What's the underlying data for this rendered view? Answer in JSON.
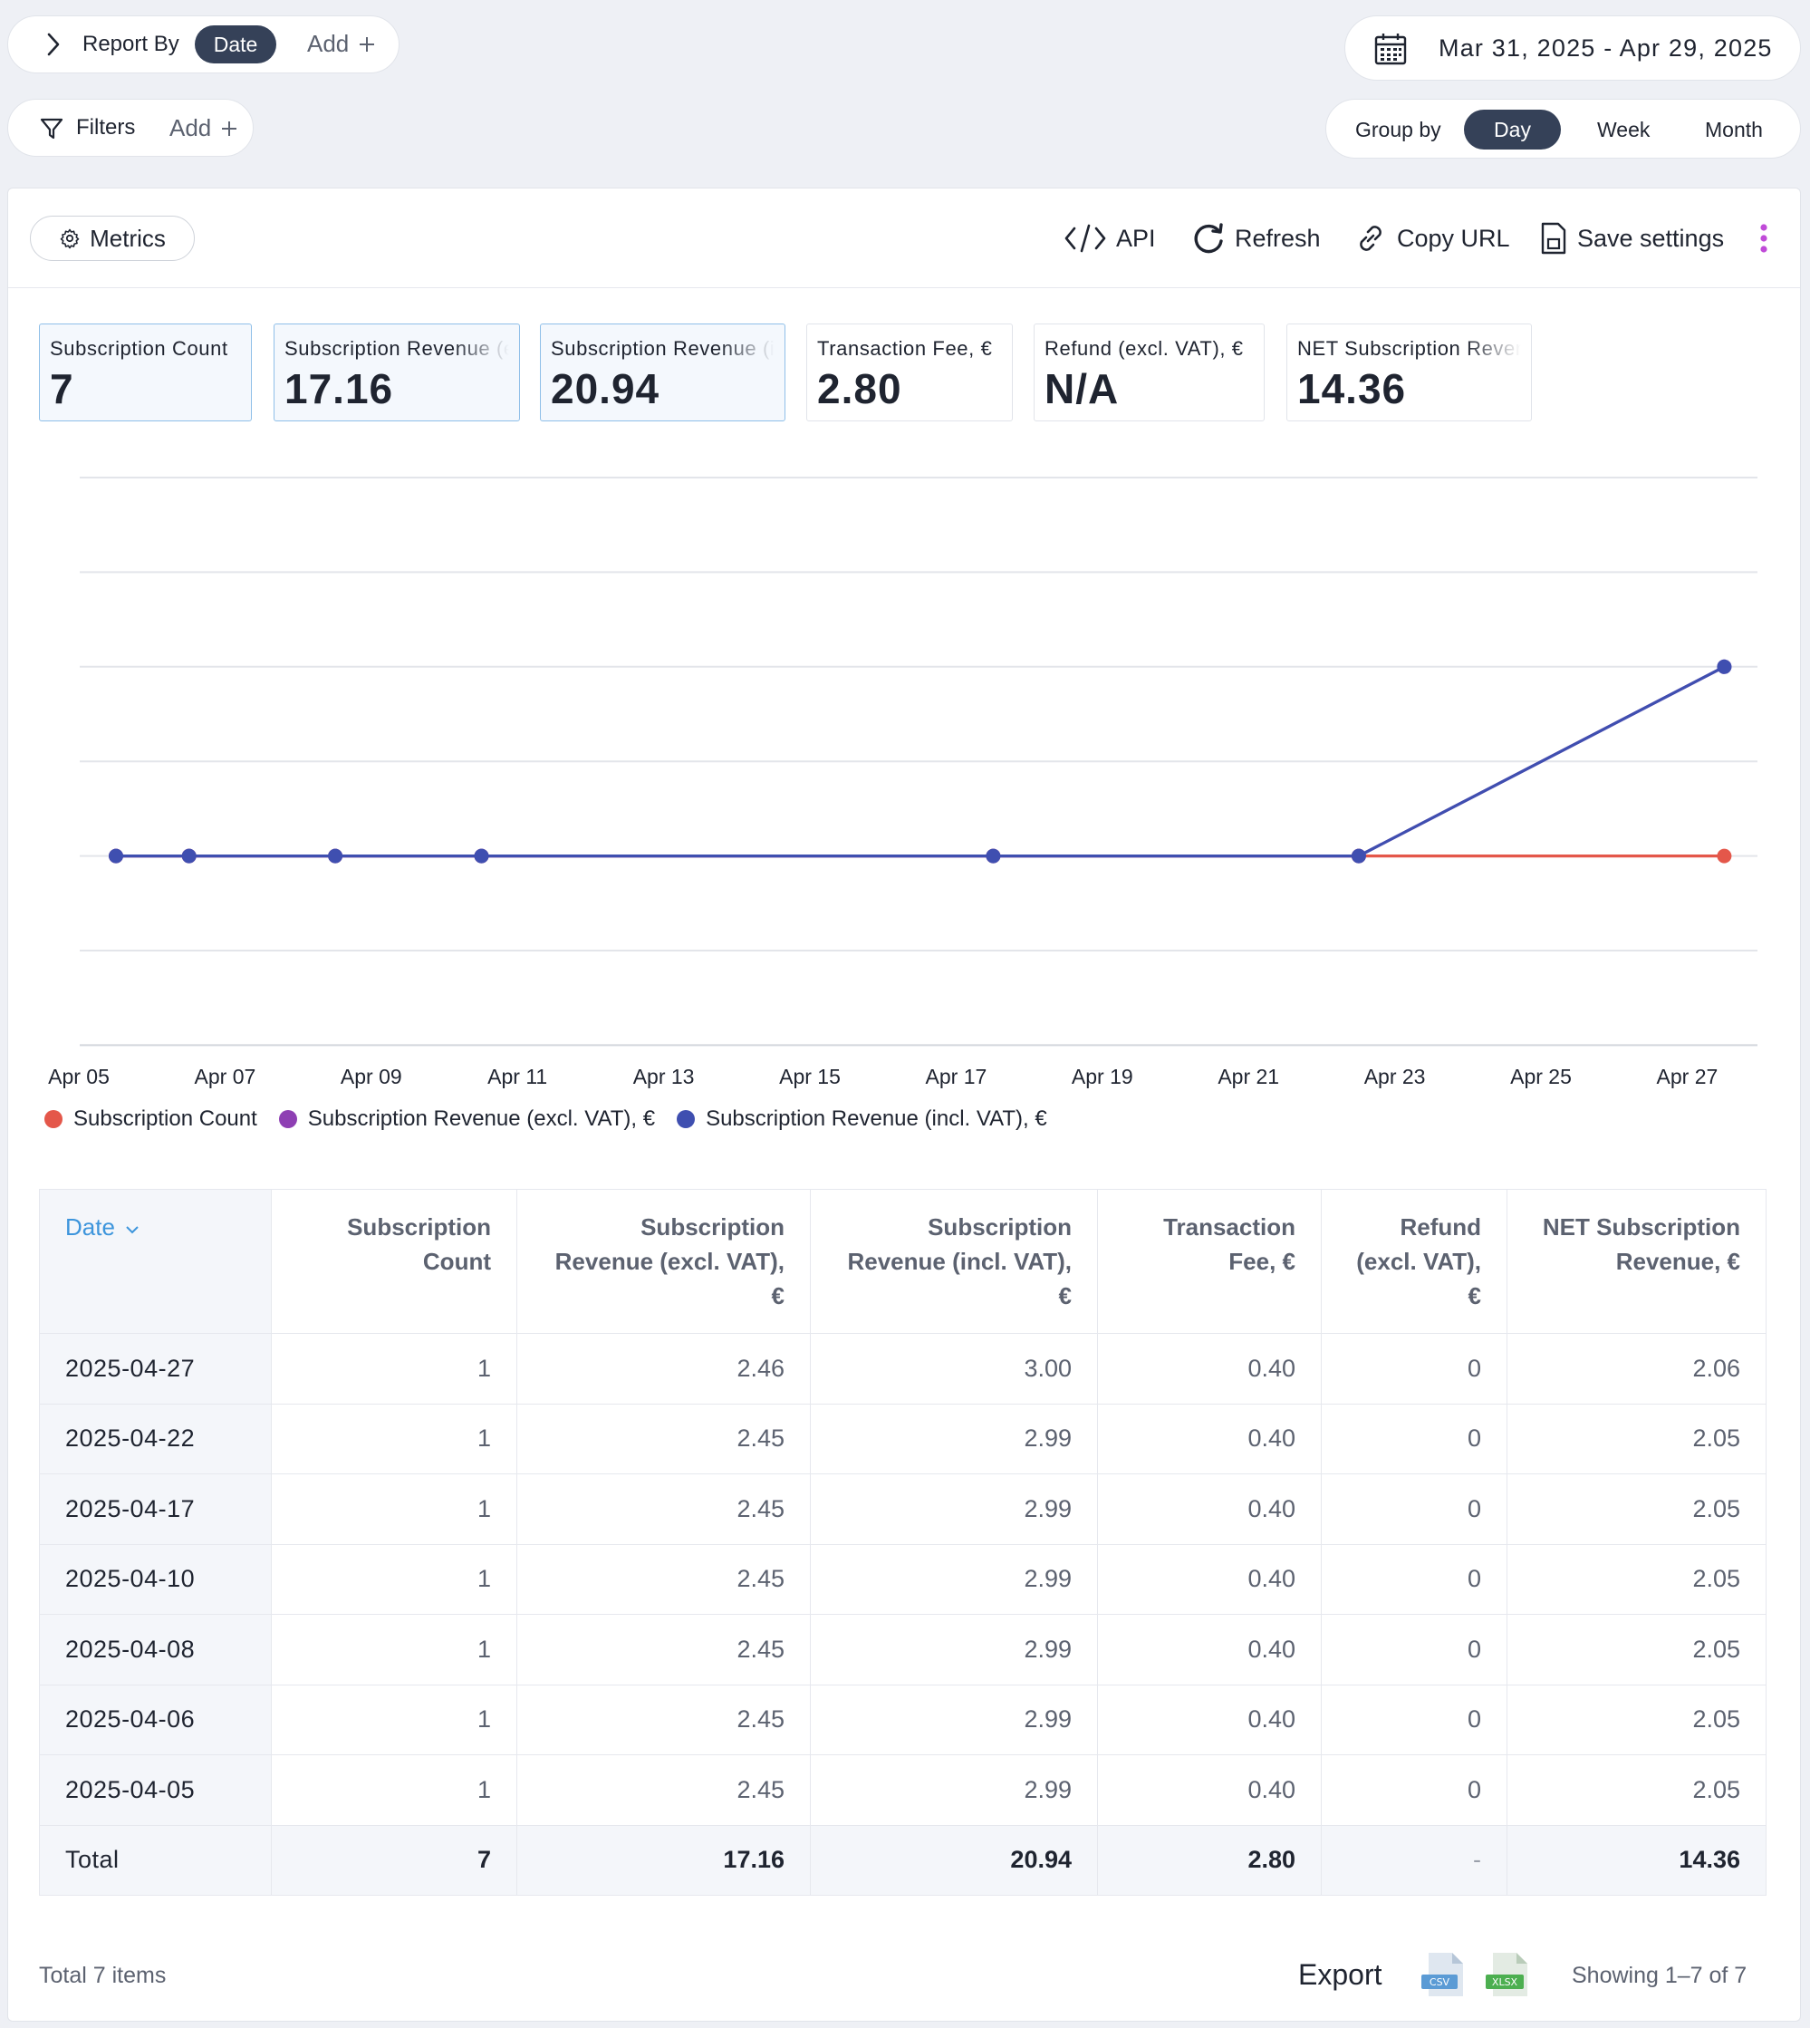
{
  "report_by": {
    "label": "Report By",
    "chip": "Date",
    "add": "Add"
  },
  "filters": {
    "label": "Filters",
    "add": "Add"
  },
  "date_range": "Mar 31, 2025 - Apr 29, 2025",
  "group_by": {
    "label": "Group by",
    "options": [
      "Day",
      "Week",
      "Month"
    ],
    "selected": "Day"
  },
  "toolbar": {
    "metrics": "Metrics",
    "api": "API",
    "refresh": "Refresh",
    "copy_url": "Copy URL",
    "save_settings": "Save settings"
  },
  "cards": [
    {
      "label": "Subscription Count",
      "value": "7",
      "selected": true
    },
    {
      "label": "Subscription Revenue (excl. VAT), €",
      "value": "17.16",
      "selected": true
    },
    {
      "label": "Subscription Revenue (incl. VAT), €",
      "value": "20.94",
      "selected": true
    },
    {
      "label": "Transaction Fee, €",
      "value": "2.80",
      "selected": false
    },
    {
      "label": "Refund (excl. VAT), €",
      "value": "N/A",
      "selected": false
    },
    {
      "label": "NET Subscription Revenue, €",
      "value": "14.36",
      "selected": false
    }
  ],
  "chart_data": {
    "type": "line",
    "x_tick_labels": [
      "Apr 05",
      "Apr 07",
      "Apr 09",
      "Apr 11",
      "Apr 13",
      "Apr 15",
      "Apr 17",
      "Apr 19",
      "Apr 21",
      "Apr 23",
      "Apr 25",
      "Apr 27"
    ],
    "x": [
      "2025-04-05",
      "2025-04-06",
      "2025-04-08",
      "2025-04-10",
      "2025-04-17",
      "2025-04-22",
      "2025-04-27"
    ],
    "series": [
      {
        "name": "Subscription Count",
        "color": "#e4574a",
        "values": [
          1,
          1,
          1,
          1,
          1,
          1,
          1
        ]
      },
      {
        "name": "Subscription Revenue (excl. VAT), €",
        "color": "#8e3fb3",
        "values": [
          2.45,
          2.45,
          2.45,
          2.45,
          2.45,
          2.45,
          2.46
        ]
      },
      {
        "name": "Subscription Revenue (incl. VAT), €",
        "color": "#3f4fb0",
        "values": [
          2.99,
          2.99,
          2.99,
          2.99,
          2.99,
          2.99,
          3.0
        ]
      }
    ],
    "grid": true,
    "legend": "bottom-left"
  },
  "table": {
    "columns": [
      "Date",
      "Subscription Count",
      "Subscription Revenue (excl. VAT), €",
      "Subscription Revenue (incl. VAT), €",
      "Transaction Fee, €",
      "Refund (excl. VAT), €",
      "NET Subscription Revenue, €"
    ],
    "rows": [
      [
        "2025-04-27",
        "1",
        "2.46",
        "3.00",
        "0.40",
        "0",
        "2.06"
      ],
      [
        "2025-04-22",
        "1",
        "2.45",
        "2.99",
        "0.40",
        "0",
        "2.05"
      ],
      [
        "2025-04-17",
        "1",
        "2.45",
        "2.99",
        "0.40",
        "0",
        "2.05"
      ],
      [
        "2025-04-10",
        "1",
        "2.45",
        "2.99",
        "0.40",
        "0",
        "2.05"
      ],
      [
        "2025-04-08",
        "1",
        "2.45",
        "2.99",
        "0.40",
        "0",
        "2.05"
      ],
      [
        "2025-04-06",
        "1",
        "2.45",
        "2.99",
        "0.40",
        "0",
        "2.05"
      ],
      [
        "2025-04-05",
        "1",
        "2.45",
        "2.99",
        "0.40",
        "0",
        "2.05"
      ]
    ],
    "total": [
      "Total",
      "7",
      "17.16",
      "20.94",
      "2.80",
      "-",
      "14.36"
    ]
  },
  "footer": {
    "total_items": "Total 7 items",
    "export": "Export",
    "csv": "CSV",
    "xlsx": "XLSX",
    "showing": "Showing 1–7 of 7"
  },
  "colors": {
    "accent": "#354158",
    "link": "#3d95dc",
    "kebab": "#c04bd8"
  }
}
